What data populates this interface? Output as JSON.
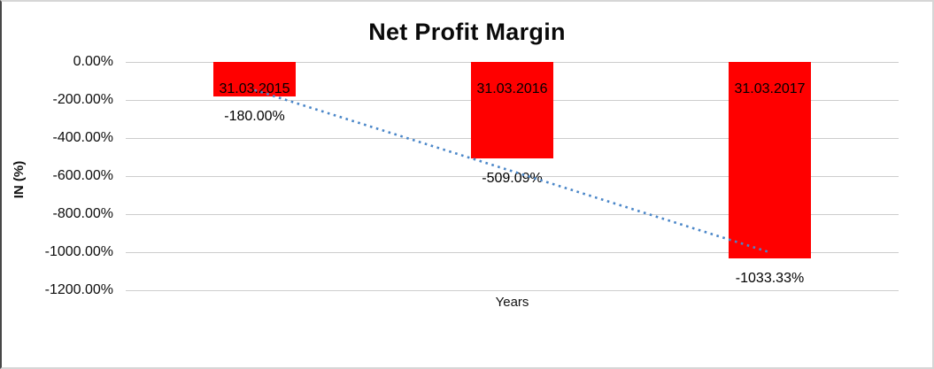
{
  "chart_data": {
    "type": "bar",
    "title": "Net Profit Margin",
    "xlabel": "Years",
    "ylabel": "IN (%)",
    "categories": [
      "31.03.2015",
      "31.03.2016",
      "31.03.2017"
    ],
    "values": [
      -180.0,
      -509.09,
      -1033.33
    ],
    "value_labels": [
      "-180.00%",
      "-509.09%",
      "-1033.33%"
    ],
    "y_ticks": [
      "0.00%",
      "-200.00%",
      "-400.00%",
      "-600.00%",
      "-800.00%",
      "-1000.00%",
      "-1200.00%"
    ],
    "ylim": [
      -1200,
      0
    ],
    "grid": true,
    "legend": "none",
    "bar_color": "#ff0000",
    "trendline": {
      "type": "linear",
      "style": "dotted",
      "color": "#4a86c8"
    }
  }
}
